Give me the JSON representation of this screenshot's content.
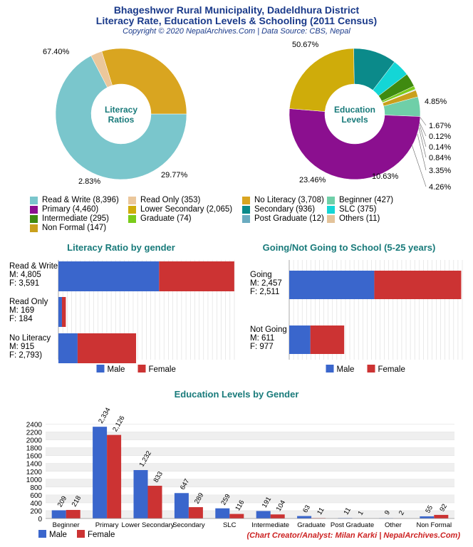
{
  "header": {
    "title_line1": "Bhageshwor Rural Municipality, Dadeldhura District",
    "title_line2": "Literacy Rate, Education Levels & Schooling (2011 Census)",
    "copyright": "Copyright © 2020 NepalArchives.Com | Data Source: CBS, Nepal"
  },
  "footer": "(Chart Creator/Analyst: Milan Karki | NepalArchives.Com)",
  "colors": {
    "read_write": "#7ac6cc",
    "read_only": "#ebc79b",
    "no_literacy": "#d9a520",
    "beginner": "#6fcfa8",
    "primary": "#8b0f8f",
    "lower_secondary": "#cfac0a",
    "secondary": "#0b8a8a",
    "slc": "#14d6d6",
    "intermediate": "#3f8a10",
    "graduate": "#7acc1a",
    "post_graduate": "#6aabc0",
    "others": "#e3c39a",
    "non_formal": "#c9a01c",
    "male": "#3a66cc",
    "female": "#cc3333"
  },
  "chart_data": [
    {
      "type": "pie",
      "center_label": "Literacy Ratios",
      "labels": [
        "Read & Write",
        "Read Only",
        "No Literacy"
      ],
      "values": [
        8396,
        353,
        3708
      ],
      "percent_labels": [
        "67.40%",
        "2.83%",
        "29.77%"
      ]
    },
    {
      "type": "pie",
      "center_label": "Education Levels",
      "labels": [
        "Beginner",
        "Primary",
        "Lower Secondary",
        "Secondary",
        "SLC",
        "Intermediate",
        "Graduate",
        "Post Graduate",
        "Others",
        "Non Formal"
      ],
      "values": [
        427,
        4460,
        2065,
        936,
        375,
        295,
        74,
        12,
        11,
        147
      ],
      "percent_labels": [
        "4.85%",
        "50.67%",
        "23.46%",
        "10.63%",
        "4.26%",
        "3.35%",
        "0.84%",
        "0.14%",
        "0.12%",
        "1.67%"
      ]
    },
    {
      "type": "bar",
      "orientation": "horizontal",
      "stacked": true,
      "title": "Literacy Ratio by gender",
      "categories": [
        "Read & Write",
        "Read Only",
        "No Literacy"
      ],
      "category_labels": [
        [
          "Read & Write",
          "M: 4,805",
          "F: 3,591"
        ],
        [
          "Read Only",
          "M: 169",
          "F: 184"
        ],
        [
          "No Literacy",
          "M: 915",
          "F: 2,793)"
        ]
      ],
      "series": [
        {
          "name": "Male",
          "values": [
            4805,
            169,
            915
          ]
        },
        {
          "name": "Female",
          "values": [
            3591,
            184,
            2793
          ]
        }
      ],
      "xlim": [
        0,
        8400
      ],
      "legend": "bottom"
    },
    {
      "type": "bar",
      "orientation": "horizontal",
      "stacked": true,
      "title": "Going/Not Going to School (5-25 years)",
      "categories": [
        "Going",
        "Not Going"
      ],
      "category_labels": [
        [
          "Going",
          "M: 2,457",
          "F: 2,511"
        ],
        [
          "Not Going",
          "M: 611",
          "F: 977"
        ]
      ],
      "series": [
        {
          "name": "Male",
          "values": [
            2457,
            611
          ]
        },
        {
          "name": "Female",
          "values": [
            2511,
            977
          ]
        }
      ],
      "xlim": [
        0,
        5000
      ],
      "legend": "bottom"
    },
    {
      "type": "bar",
      "orientation": "vertical",
      "title": "Education Levels by Gender",
      "categories": [
        "Beginner",
        "Primary",
        "Lower Secondary",
        "Secondary",
        "SLC",
        "Intermediate",
        "Graduate",
        "Post Graduate",
        "Other",
        "Non Formal"
      ],
      "series": [
        {
          "name": "Male",
          "values": [
            209,
            2334,
            1232,
            647,
            259,
            191,
            63,
            11,
            9,
            55
          ]
        },
        {
          "name": "Female",
          "values": [
            218,
            2126,
            833,
            289,
            116,
            104,
            11,
            1,
            2,
            92
          ]
        }
      ],
      "value_labels": {
        "male": [
          "209",
          "2,334",
          "1,232",
          "647",
          "259",
          "191",
          "63",
          "11",
          "9",
          "55"
        ],
        "female": [
          "218",
          "2,126",
          "833",
          "289",
          "116",
          "104",
          "11",
          "1",
          "2",
          "92"
        ]
      },
      "yticks": [
        "0",
        "200",
        "400",
        "600",
        "800",
        "1000",
        "1200",
        "1400",
        "1600",
        "1800",
        "2000",
        "2200",
        "2400"
      ],
      "ytick_values": [
        0,
        200,
        400,
        600,
        800,
        1000,
        1200,
        1400,
        1600,
        1800,
        2000,
        2200,
        2400
      ],
      "ylim": [
        0,
        2500
      ],
      "grid": true,
      "legend": "bottom-left"
    }
  ],
  "legend_items": [
    {
      "label": "Read & Write (8,396)",
      "color": "#7ac6cc"
    },
    {
      "label": "Read Only (353)",
      "color": "#ebc79b"
    },
    {
      "label": "No Literacy (3,708)",
      "color": "#d9a520"
    },
    {
      "label": "Beginner (427)",
      "color": "#6fcfa8"
    },
    {
      "label": "Primary (4,460)",
      "color": "#8b0f8f"
    },
    {
      "label": "Lower Secondary (2,065)",
      "color": "#cfac0a"
    },
    {
      "label": "Secondary (936)",
      "color": "#0b8a8a"
    },
    {
      "label": "SLC (375)",
      "color": "#14d6d6"
    },
    {
      "label": "Intermediate (295)",
      "color": "#3f8a10"
    },
    {
      "label": "Graduate (74)",
      "color": "#7acc1a"
    },
    {
      "label": "Post Graduate (12)",
      "color": "#6aabc0"
    },
    {
      "label": "Others (11)",
      "color": "#e3c39a"
    },
    {
      "label": "Non Formal (147)",
      "color": "#c9a01c"
    }
  ]
}
